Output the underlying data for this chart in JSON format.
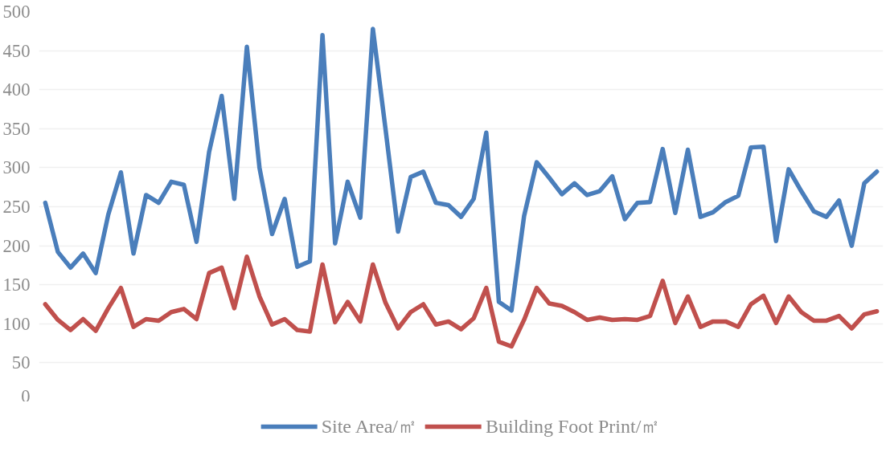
{
  "chart_data": {
    "type": "line",
    "categories": [
      null,
      null,
      null,
      null,
      null,
      null,
      null,
      null,
      null,
      null,
      null,
      null,
      null,
      null,
      null,
      null,
      null,
      null,
      null,
      null,
      null,
      null,
      null,
      null,
      null,
      null,
      null,
      null,
      null,
      null,
      null,
      null,
      null,
      null,
      null,
      null,
      null,
      null,
      null,
      null,
      null,
      null,
      null,
      null,
      null,
      null,
      null,
      null,
      null,
      null,
      null,
      null,
      null,
      null,
      null,
      null,
      null,
      null,
      null,
      null,
      null,
      null,
      null,
      null,
      null,
      null,
      null
    ],
    "series": [
      {
        "name": "Site Area/㎡",
        "color": "#4a7ebb",
        "values": [
          255,
          192,
          172,
          190,
          165,
          240,
          294,
          190,
          265,
          255,
          282,
          278,
          205,
          320,
          392,
          260,
          455,
          300,
          215,
          260,
          173,
          180,
          470,
          203,
          282,
          236,
          478,
          350,
          218,
          288,
          295,
          255,
          252,
          237,
          260,
          345,
          128,
          117,
          238,
          307,
          287,
          266,
          280,
          265,
          270,
          289,
          234,
          255,
          256,
          324,
          242,
          323,
          237,
          243,
          256,
          264,
          326,
          327,
          206,
          298,
          270,
          244,
          237,
          258,
          200,
          280,
          295
        ]
      },
      {
        "name": "Building Foot Print/㎡",
        "color": "#c0504d",
        "values": [
          125,
          105,
          92,
          106,
          91,
          120,
          146,
          96,
          106,
          104,
          115,
          119,
          106,
          165,
          172,
          120,
          186,
          135,
          99,
          106,
          92,
          90,
          176,
          102,
          128,
          103,
          176,
          127,
          94,
          115,
          125,
          99,
          103,
          93,
          107,
          146,
          77,
          71,
          105,
          146,
          126,
          123,
          115,
          105,
          108,
          105,
          106,
          105,
          110,
          155,
          101,
          135,
          96,
          103,
          103,
          96,
          125,
          136,
          101,
          135,
          115,
          104,
          104,
          110,
          94,
          112,
          116
        ]
      }
    ],
    "ylim": [
      0,
      500
    ],
    "yticks": [
      0,
      50,
      100,
      150,
      200,
      250,
      300,
      350,
      400,
      450,
      500
    ],
    "grid": "y",
    "legend": "bottom",
    "marker": "none",
    "line_style": "solid",
    "tick_labels": "y"
  }
}
